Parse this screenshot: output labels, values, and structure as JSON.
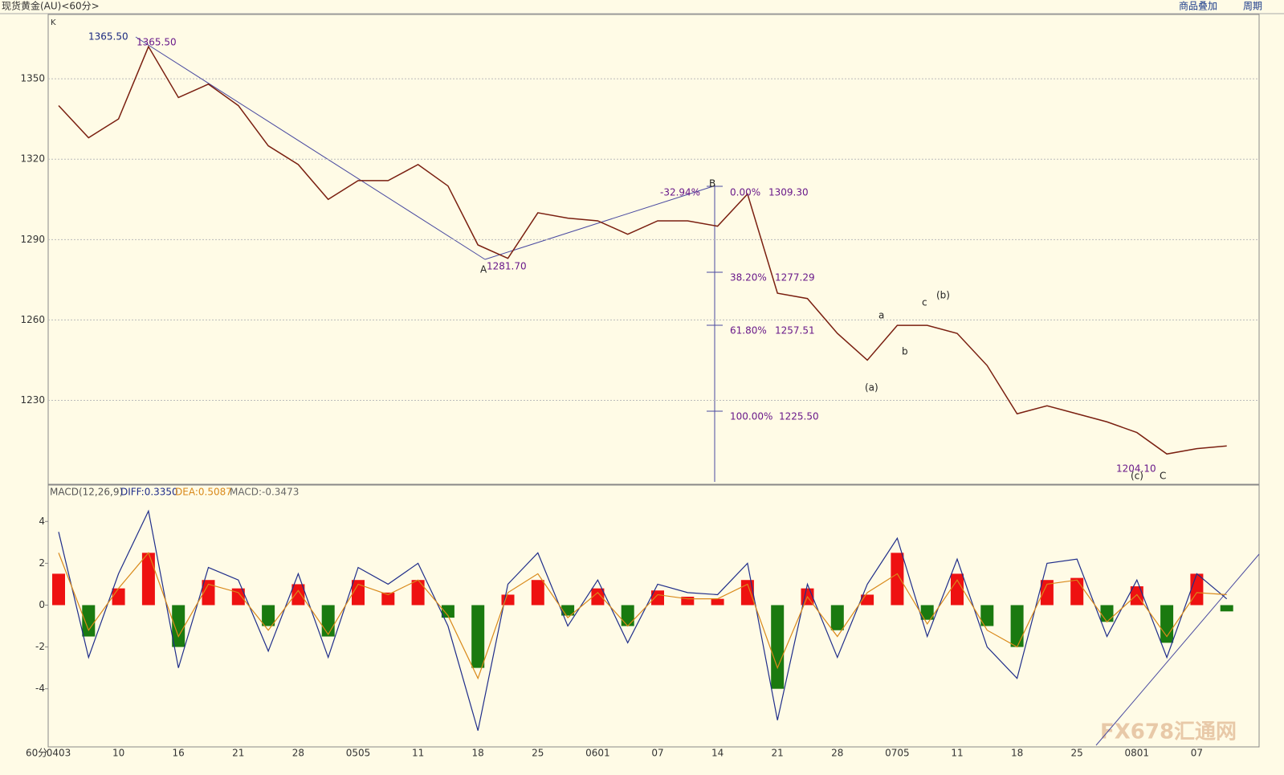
{
  "header": {
    "title": "现货黄金(AU)<60分>",
    "buttons": [
      "商品叠加",
      "周期"
    ]
  },
  "pane_label": "K",
  "axis_unit": "60分",
  "watermark": "FX678汇通网",
  "annotations": [
    "1365.50",
    "1365.50",
    "A",
    "1281.70",
    "B",
    "-32.94%",
    "0.00%",
    "1309.30",
    "38.20%",
    "1277.29",
    "61.80%",
    "1257.51",
    "100.00%",
    "1225.50",
    "a",
    "b",
    "c",
    "(b)",
    "(a)",
    "1204.10",
    "(c)",
    "C"
  ],
  "chart_data": [
    {
      "type": "line",
      "color": "#7a1f10",
      "ylim": [
        1199,
        1374
      ],
      "yticks": [
        1230,
        1260,
        1290,
        1320,
        1350
      ],
      "grid": true,
      "values": [
        1340,
        1328,
        1335,
        1362,
        1343,
        1348,
        1340,
        1325,
        1318,
        1305,
        1312,
        1312,
        1318,
        1310,
        1288,
        1283,
        1300,
        1298,
        1297,
        1292,
        1297,
        1297,
        1295,
        1307,
        1270,
        1268,
        1255,
        1245,
        1258,
        1258,
        1255,
        1243,
        1225,
        1228,
        1225,
        1222,
        1218,
        1210,
        1212,
        1213
      ]
    },
    {
      "type": "macd",
      "title": "MACD(12,26,9)",
      "ylim": [
        -6.7,
        5.7
      ],
      "yticks": [
        -4,
        -2,
        0,
        2,
        4
      ],
      "pos_color": "#ee1111",
      "neg_color": "#1a7a10",
      "categories": [
        "0403",
        null,
        "10",
        null,
        "16",
        null,
        "21",
        null,
        "28",
        null,
        "0505",
        null,
        "11",
        null,
        "18",
        null,
        "25",
        null,
        "0601",
        null,
        "07",
        null,
        "14",
        null,
        "21",
        null,
        "28",
        null,
        "0705",
        null,
        "11",
        null,
        "18",
        null,
        "25",
        null,
        "0801",
        null,
        "07",
        null
      ],
      "series": [
        {
          "name": "MACD:-0.3473",
          "color": "#666666",
          "values": [
            1.5,
            -1.5,
            0.8,
            2.5,
            -2,
            1.2,
            0.8,
            -1,
            1,
            -1.5,
            1.2,
            0.6,
            1.2,
            -0.6,
            -3,
            0.5,
            1.2,
            -0.5,
            0.8,
            -1,
            0.7,
            0.4,
            0.3,
            1.2,
            -4,
            0.8,
            -1.2,
            0.5,
            2.5,
            -0.7,
            1.5,
            -1,
            -2,
            1.2,
            1.3,
            -0.8,
            0.9,
            -1.8,
            1.5,
            -0.3
          ]
        },
        {
          "name": "DIFF:0.3350",
          "color": "#1f2d8a",
          "values": [
            3.5,
            -2.5,
            1.5,
            4.5,
            -3,
            1.8,
            1.2,
            -2.2,
            1.5,
            -2.5,
            1.8,
            1,
            2,
            -1,
            -6,
            1,
            2.5,
            -1,
            1.2,
            -1.8,
            1,
            0.6,
            0.5,
            2,
            -5.5,
            1,
            -2.5,
            1,
            3.2,
            -1.5,
            2.2,
            -2,
            -3.5,
            2,
            2.2,
            -1.5,
            1.2,
            -2.5,
            1.5,
            0.3
          ]
        },
        {
          "name": "DEA:0.5087",
          "color": "#d9891a",
          "values": [
            2.5,
            -1.2,
            0.8,
            2.5,
            -1.5,
            1,
            0.6,
            -1.2,
            0.7,
            -1.4,
            1,
            0.5,
            1.2,
            -0.5,
            -3.5,
            0.6,
            1.5,
            -0.6,
            0.6,
            -1,
            0.5,
            0.3,
            0.3,
            1,
            -3,
            0.4,
            -1.5,
            0.6,
            1.5,
            -0.9,
            1.2,
            -1.2,
            -2,
            1,
            1.2,
            -0.8,
            0.5,
            -1.5,
            0.6,
            0.5
          ]
        }
      ]
    }
  ]
}
